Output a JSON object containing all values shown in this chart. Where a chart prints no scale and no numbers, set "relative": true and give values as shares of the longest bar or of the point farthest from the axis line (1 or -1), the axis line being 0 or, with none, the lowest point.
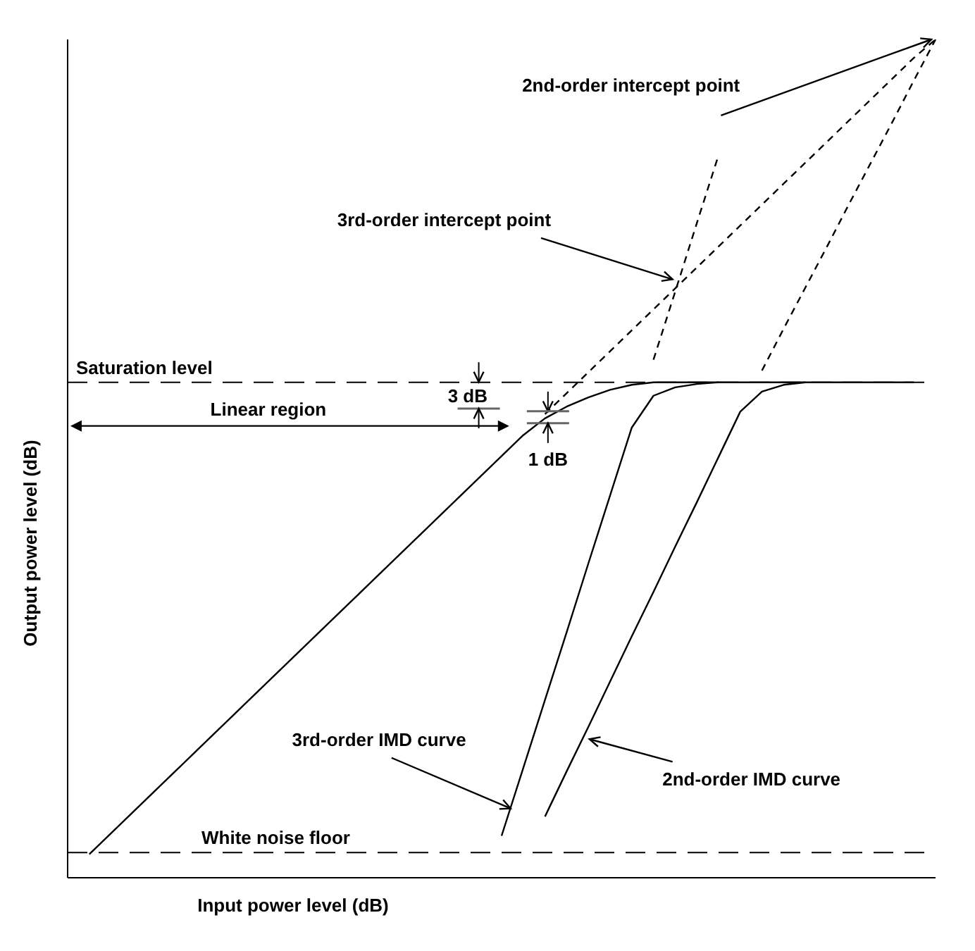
{
  "chart_data": {
    "type": "line",
    "relative": true,
    "xlabel": "Input power level (dB)",
    "ylabel": "Output power level (dB)",
    "tick_labels": false,
    "marker": "none",
    "categories": [
      null,
      null,
      null,
      null,
      null,
      null,
      null,
      null,
      null,
      null,
      null,
      null,
      null,
      null,
      null,
      null,
      null,
      null,
      null,
      null,
      null,
      null,
      null,
      null,
      null,
      null,
      null,
      null,
      null,
      null,
      null,
      null,
      null,
      null,
      null,
      null,
      null,
      null,
      null,
      null,
      null
    ],
    "series": [
      {
        "color": "#000000",
        "line_style": "solid",
        "values": [
          null,
          0.028,
          0.053,
          0.078,
          0.103,
          0.128,
          0.153,
          0.178,
          0.203,
          0.228,
          0.253,
          0.278,
          0.303,
          0.328,
          0.353,
          0.378,
          0.403,
          0.428,
          0.453,
          0.478,
          0.503,
          0.528,
          0.548,
          0.562,
          0.573,
          0.582,
          0.588,
          0.591,
          0.591,
          0.591,
          0.591,
          0.591,
          0.591,
          0.591,
          0.591,
          0.591,
          0.591,
          0.591,
          0.591,
          0.591,
          null
        ]
      },
      {
        "color": "#000000",
        "line_style": "dashed",
        "values": [
          null,
          null,
          null,
          null,
          null,
          null,
          null,
          null,
          null,
          null,
          null,
          null,
          null,
          null,
          null,
          null,
          null,
          null,
          null,
          null,
          null,
          null,
          0.553,
          0.578,
          0.603,
          0.628,
          0.653,
          0.678,
          0.703,
          0.728,
          0.753,
          0.778,
          0.803,
          0.828,
          0.853,
          0.878,
          0.903,
          0.928,
          0.953,
          0.978,
          1.0
        ]
      },
      {
        "color": "#000000",
        "line_style": "solid",
        "values": [
          null,
          null,
          null,
          null,
          null,
          null,
          null,
          null,
          null,
          null,
          null,
          null,
          null,
          null,
          null,
          null,
          null,
          null,
          null,
          null,
          0.05,
          0.131,
          0.212,
          0.293,
          0.375,
          0.456,
          0.537,
          0.575,
          0.585,
          0.589,
          0.591,
          null,
          null,
          null,
          null,
          null,
          null,
          null,
          null,
          null,
          null
        ]
      },
      {
        "color": "#000000",
        "line_style": "dashed",
        "values": [
          null,
          null,
          null,
          null,
          null,
          null,
          null,
          null,
          null,
          null,
          null,
          null,
          null,
          null,
          null,
          null,
          null,
          null,
          null,
          null,
          null,
          null,
          null,
          null,
          null,
          null,
          null,
          0.618,
          0.699,
          0.781,
          0.862,
          null,
          null,
          null,
          null,
          null,
          null,
          null,
          null,
          null,
          null
        ]
      },
      {
        "color": "#000000",
        "line_style": "solid",
        "values": [
          null,
          null,
          null,
          null,
          null,
          null,
          null,
          null,
          null,
          null,
          null,
          null,
          null,
          null,
          null,
          null,
          null,
          null,
          null,
          null,
          null,
          null,
          0.073,
          0.127,
          0.18,
          0.234,
          0.288,
          0.341,
          0.395,
          0.448,
          0.502,
          0.556,
          0.58,
          0.588,
          0.591,
          null,
          null,
          null,
          null,
          null,
          null
        ]
      },
      {
        "color": "#000000",
        "line_style": "dashed",
        "values": [
          null,
          null,
          null,
          null,
          null,
          null,
          null,
          null,
          null,
          null,
          null,
          null,
          null,
          null,
          null,
          null,
          null,
          null,
          null,
          null,
          null,
          null,
          null,
          null,
          null,
          null,
          null,
          null,
          null,
          null,
          null,
          null,
          0.605,
          0.655,
          0.704,
          0.753,
          0.803,
          0.852,
          0.901,
          0.951,
          1.0
        ]
      }
    ],
    "ref_lines": [
      {
        "axis": "y",
        "value": 0.591,
        "label": "Saturation level",
        "color": "#000000",
        "line_style": "dashed"
      },
      {
        "axis": "y",
        "value": 0.03,
        "label": "White noise floor",
        "color": "#000000",
        "line_style": "dashed"
      }
    ],
    "annotations": [
      "2nd-order intercept point",
      "3rd-order intercept point",
      "3rd-order IMD curve",
      "2nd-order IMD curve",
      "Linear region",
      "3 dB",
      "1 dB"
    ]
  }
}
